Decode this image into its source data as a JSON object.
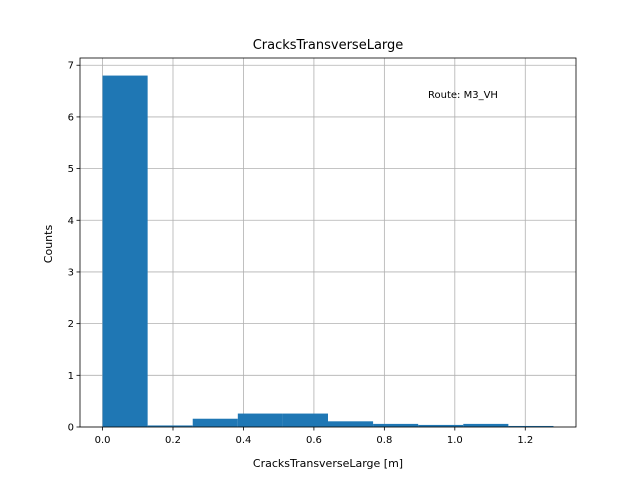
{
  "chart_data": {
    "type": "bar",
    "title": "CracksTransverseLarge",
    "xlabel": "CracksTransverseLarge [m]",
    "ylabel": "Counts",
    "annotation": "Route: M3_VH",
    "xlim": [
      -0.064,
      1.344
    ],
    "ylim": [
      0,
      7.14
    ],
    "xticks": [
      0.0,
      0.2,
      0.4,
      0.6,
      0.8,
      1.0,
      1.2
    ],
    "xtick_labels": [
      "0.0",
      "0.2",
      "0.4",
      "0.6",
      "0.8",
      "1.0",
      "1.2"
    ],
    "yticks": [
      0,
      1,
      2,
      3,
      4,
      5,
      6,
      7
    ],
    "ytick_labels": [
      "0",
      "1",
      "2",
      "3",
      "4",
      "5",
      "6",
      "7"
    ],
    "grid": true,
    "bar_color": "#1f77b4",
    "bins": [
      {
        "x0": 0.0,
        "x1": 0.128,
        "value": 6.8
      },
      {
        "x0": 0.128,
        "x1": 0.256,
        "value": 0.03
      },
      {
        "x0": 0.256,
        "x1": 0.384,
        "value": 0.16
      },
      {
        "x0": 0.384,
        "x1": 0.512,
        "value": 0.26
      },
      {
        "x0": 0.512,
        "x1": 0.64,
        "value": 0.26
      },
      {
        "x0": 0.64,
        "x1": 0.768,
        "value": 0.11
      },
      {
        "x0": 0.768,
        "x1": 0.896,
        "value": 0.06
      },
      {
        "x0": 0.896,
        "x1": 1.024,
        "value": 0.04
      },
      {
        "x0": 1.024,
        "x1": 1.152,
        "value": 0.06
      },
      {
        "x0": 1.152,
        "x1": 1.28,
        "value": 0.02
      }
    ]
  }
}
